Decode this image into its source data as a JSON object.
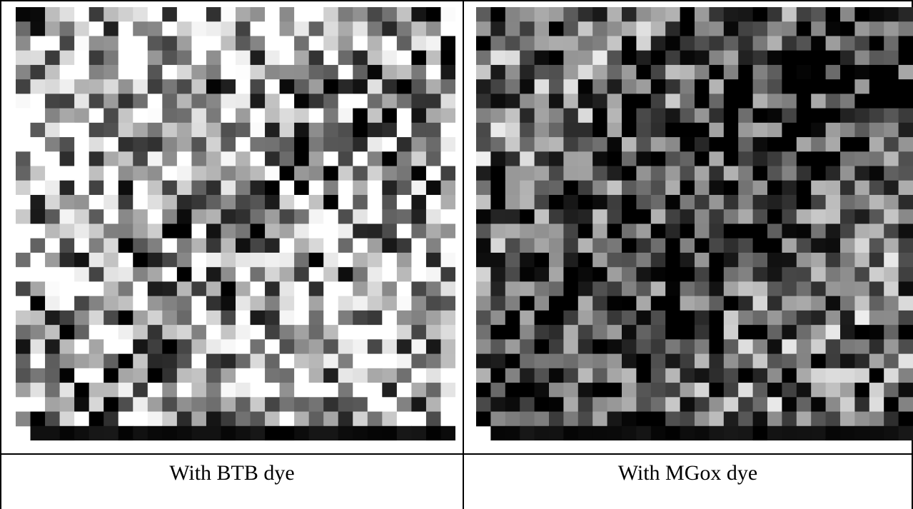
{
  "table": {
    "rows": [
      [
        "With BTB dye",
        "With MGox dye"
      ]
    ]
  }
}
